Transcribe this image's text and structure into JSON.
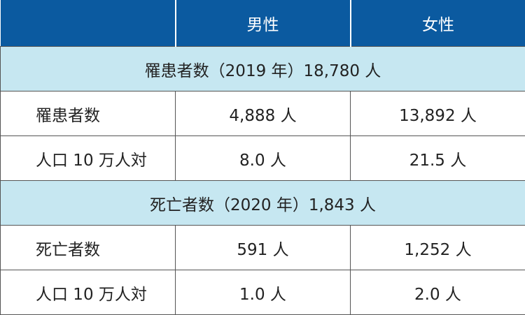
{
  "table": {
    "columns": [
      "男性",
      "女性"
    ],
    "sections": [
      {
        "title": "罹患者数（2019 年）18,780 人",
        "rows": [
          {
            "label": "罹患者数",
            "values": [
              "4,888 人",
              "13,892 人"
            ]
          },
          {
            "label": "人口 10 万人対",
            "values": [
              "8.0 人",
              "21.5 人"
            ]
          }
        ]
      },
      {
        "title": "死亡者数（2020 年）1,843 人",
        "rows": [
          {
            "label": "死亡者数",
            "values": [
              "591 人",
              "1,252 人"
            ]
          },
          {
            "label": "人口 10 万人対",
            "values": [
              "1.0 人",
              "2.0 人"
            ]
          }
        ]
      }
    ]
  }
}
